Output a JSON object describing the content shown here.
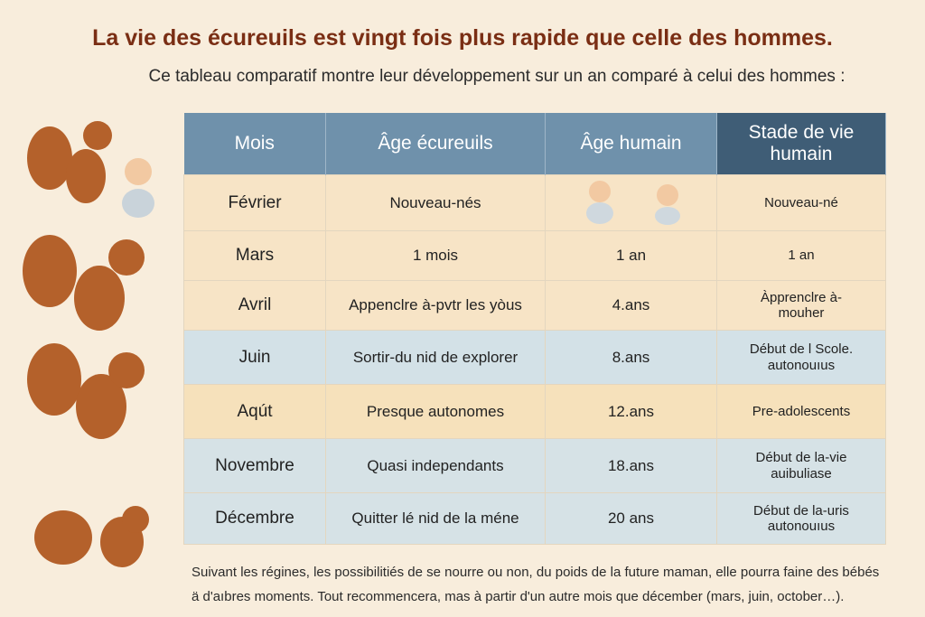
{
  "header": {
    "title": "La vie des écureuils est vingt fois plus rapide que celle des hommes.",
    "subtitle": "Ce tableau comparatif montre leur développement sur un an comparé à celui des hommes :"
  },
  "table": {
    "columns": [
      "Mois",
      "Âge écureuils",
      "Âge humain",
      "Stade de vie humain"
    ],
    "rows": [
      [
        "Février",
        "Nouveau-nés",
        null,
        "Nouveau-né"
      ],
      [
        "Mars",
        "1 mois",
        "1 an",
        "1 an"
      ],
      [
        "Avril",
        "Appenclre à-pvtr les yòus",
        "4.ans",
        "Àpprenclre à-mouher"
      ],
      [
        "Juin",
        "Sortir-du nid de explorer",
        "8.ans",
        "Début de l Scole. autonouıus"
      ],
      [
        "Aqút",
        "Presque autonomes",
        "12.ans",
        "Pre-adolescents"
      ],
      [
        "Novembre",
        "Quasi independants",
        "18.ans",
        "Début de la-vie auibuliase"
      ],
      [
        "Décembre",
        "Quitter lé nid de la méne",
        "20 ans",
        "Début de la-uris autonouıus"
      ]
    ]
  },
  "footnote": [
    "Suivant les régines, les possibilitiés de se nourre ou non, du poids de la future maman, elle pourra faine des bébés",
    "ä d'aıbres moments. Tout recommencera, mas à partir d'un autre mois que décember (mars, juin, october…)."
  ]
}
